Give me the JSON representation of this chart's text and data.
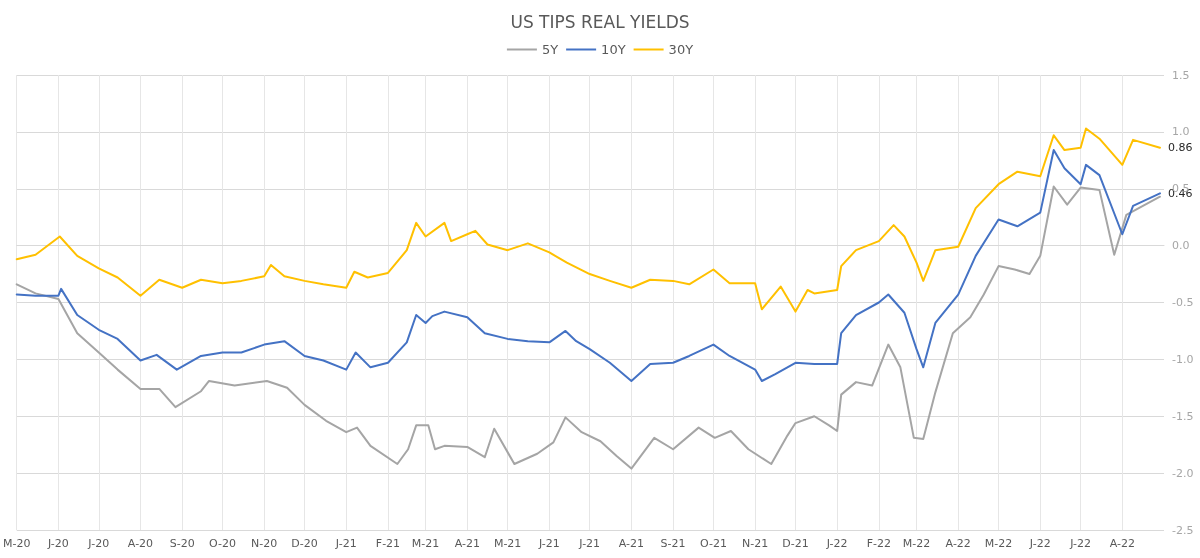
{
  "chart_data": {
    "type": "line",
    "title": "US TIPS REAL YIELDS",
    "legend": "top",
    "grid": true,
    "marker": "none",
    "line_style": "solid",
    "xlim": [
      "2020-05-01",
      "2022-09-01"
    ],
    "xticks": [
      {
        "value": "2020-05-01",
        "label": "M-20"
      },
      {
        "value": "2020-06-01",
        "label": "J-20"
      },
      {
        "value": "2020-07-01",
        "label": "J-20"
      },
      {
        "value": "2020-08-01",
        "label": "A-20"
      },
      {
        "value": "2020-09-01",
        "label": "S-20"
      },
      {
        "value": "2020-10-01",
        "label": "O-20"
      },
      {
        "value": "2020-11-01",
        "label": "N-20"
      },
      {
        "value": "2020-12-01",
        "label": "D-20"
      },
      {
        "value": "2021-01-01",
        "label": "J-21"
      },
      {
        "value": "2021-02-01",
        "label": "F-21"
      },
      {
        "value": "2021-03-01",
        "label": "M-21"
      },
      {
        "value": "2021-04-01",
        "label": "A-21"
      },
      {
        "value": "2021-05-01",
        "label": "M-21"
      },
      {
        "value": "2021-06-01",
        "label": "J-21"
      },
      {
        "value": "2021-07-01",
        "label": "J-21"
      },
      {
        "value": "2021-08-01",
        "label": "A-21"
      },
      {
        "value": "2021-09-01",
        "label": "S-21"
      },
      {
        "value": "2021-10-01",
        "label": "O-21"
      },
      {
        "value": "2021-11-01",
        "label": "N-21"
      },
      {
        "value": "2021-12-01",
        "label": "D-21"
      },
      {
        "value": "2022-01-01",
        "label": "J-22"
      },
      {
        "value": "2022-02-01",
        "label": "F-22"
      },
      {
        "value": "2022-03-01",
        "label": "M-22"
      },
      {
        "value": "2022-04-01",
        "label": "A-22"
      },
      {
        "value": "2022-05-01",
        "label": "M-22"
      },
      {
        "value": "2022-06-01",
        "label": "J-22"
      },
      {
        "value": "2022-07-01",
        "label": "J-22"
      },
      {
        "value": "2022-08-01",
        "label": "A-22"
      }
    ],
    "ylim": [
      -2.5,
      1.5
    ],
    "yticks": [
      -2.5,
      {
        "value": -2,
        "label": "-2.0"
      },
      -1.5,
      {
        "value": -1,
        "label": "-1.0"
      },
      -0.5,
      {
        "value": 0,
        "label": "0.0"
      },
      0.5,
      {
        "value": 1,
        "label": "1.0"
      },
      1.5
    ],
    "annotations": [
      {
        "text": "0.86",
        "x": "2022-08-29",
        "y": 0.86
      },
      {
        "text": "0.46",
        "x": "2022-08-29",
        "y": 0.46
      }
    ],
    "series": [
      {
        "name": "5Y",
        "color": "#a5a5a5",
        "x": [
          "2020-05-01",
          "2020-05-15",
          "2020-06-01",
          "2020-06-15",
          "2020-07-01",
          "2020-07-15",
          "2020-08-01",
          "2020-08-15",
          "2020-08-27",
          "2020-09-15",
          "2020-09-21",
          "2020-10-10",
          "2020-11-03",
          "2020-11-18",
          "2020-12-01",
          "2020-12-17",
          "2021-01-01",
          "2021-01-09",
          "2021-01-19",
          "2021-02-08",
          "2021-02-16",
          "2021-02-22",
          "2021-03-03",
          "2021-03-08",
          "2021-03-15",
          "2021-04-01",
          "2021-04-14",
          "2021-04-21",
          "2021-05-06",
          "2021-05-23",
          "2021-06-04",
          "2021-06-13",
          "2021-06-25",
          "2021-07-09",
          "2021-07-21",
          "2021-08-01",
          "2021-08-18",
          "2021-09-01",
          "2021-09-20",
          "2021-10-02",
          "2021-10-14",
          "2021-10-27",
          "2021-11-13",
          "2021-11-25",
          "2021-12-01",
          "2021-12-15",
          "2021-12-26",
          "2022-01-01",
          "2022-01-04",
          "2022-01-15",
          "2022-01-27",
          "2022-02-08",
          "2022-02-17",
          "2022-02-27",
          "2022-03-06",
          "2022-03-15",
          "2022-03-28",
          "2022-04-10",
          "2022-04-20",
          "2022-05-01",
          "2022-05-13",
          "2022-05-24",
          "2022-06-01",
          "2022-06-11",
          "2022-06-21",
          "2022-07-01",
          "2022-07-15",
          "2022-07-26",
          "2022-08-04",
          "2022-08-29"
        ],
        "values": [
          -0.34,
          -0.42,
          -0.47,
          -0.77,
          -0.94,
          -1.09,
          -1.26,
          -1.26,
          -1.42,
          -1.28,
          -1.19,
          -1.23,
          -1.19,
          -1.25,
          -1.4,
          -1.54,
          -1.64,
          -1.6,
          -1.76,
          -1.92,
          -1.79,
          -1.58,
          -1.58,
          -1.79,
          -1.76,
          -1.77,
          -1.86,
          -1.61,
          -1.92,
          -1.83,
          -1.73,
          -1.51,
          -1.64,
          -1.72,
          -1.85,
          -1.96,
          -1.69,
          -1.79,
          -1.6,
          -1.69,
          -1.63,
          -1.79,
          -1.92,
          -1.67,
          -1.56,
          -1.5,
          -1.58,
          -1.63,
          -1.31,
          -1.2,
          -1.23,
          -0.87,
          -1.07,
          -1.69,
          -1.7,
          -1.29,
          -0.77,
          -0.63,
          -0.43,
          -0.18,
          -0.21,
          -0.25,
          -0.09,
          0.52,
          0.36,
          0.51,
          0.49,
          -0.08,
          0.27,
          0.43
        ]
      },
      {
        "name": "10Y",
        "color": "#4472c4",
        "x": [
          "2020-05-01",
          "2020-05-15",
          "2020-06-01",
          "2020-06-03",
          "2020-06-15",
          "2020-07-01",
          "2020-07-15",
          "2020-08-01",
          "2020-08-13",
          "2020-08-28",
          "2020-09-15",
          "2020-10-01",
          "2020-10-15",
          "2020-11-01",
          "2020-11-16",
          "2020-12-01",
          "2020-12-15",
          "2021-01-01",
          "2021-01-08",
          "2021-01-19",
          "2021-02-01",
          "2021-02-15",
          "2021-02-22",
          "2021-03-01",
          "2021-03-06",
          "2021-03-15",
          "2021-04-01",
          "2021-04-14",
          "2021-05-01",
          "2021-05-16",
          "2021-06-01",
          "2021-06-13",
          "2021-06-21",
          "2021-07-01",
          "2021-07-16",
          "2021-08-01",
          "2021-08-15",
          "2021-09-01",
          "2021-09-13",
          "2021-10-01",
          "2021-10-13",
          "2021-11-01",
          "2021-11-06",
          "2021-11-16",
          "2021-12-01",
          "2021-12-15",
          "2022-01-01",
          "2022-01-04",
          "2022-01-15",
          "2022-02-01",
          "2022-02-08",
          "2022-02-20",
          "2022-03-01",
          "2022-03-06",
          "2022-03-15",
          "2022-04-01",
          "2022-04-14",
          "2022-05-01",
          "2022-05-15",
          "2022-06-01",
          "2022-06-11",
          "2022-06-19",
          "2022-07-01",
          "2022-07-05",
          "2022-07-15",
          "2022-08-01",
          "2022-08-09",
          "2022-08-29"
        ],
        "values": [
          -0.43,
          -0.44,
          -0.44,
          -0.38,
          -0.61,
          -0.74,
          -0.82,
          -1.01,
          -0.96,
          -1.09,
          -0.97,
          -0.94,
          -0.94,
          -0.87,
          -0.84,
          -0.97,
          -1.01,
          -1.09,
          -0.94,
          -1.07,
          -1.03,
          -0.85,
          -0.61,
          -0.68,
          -0.62,
          -0.58,
          -0.63,
          -0.77,
          -0.82,
          -0.84,
          -0.85,
          -0.75,
          -0.84,
          -0.91,
          -1.03,
          -1.19,
          -1.04,
          -1.03,
          -0.97,
          -0.87,
          -0.97,
          -1.09,
          -1.19,
          -1.13,
          -1.03,
          -1.04,
          -1.04,
          -0.77,
          -0.61,
          -0.5,
          -0.43,
          -0.59,
          -0.91,
          -1.07,
          -0.68,
          -0.43,
          -0.09,
          0.23,
          0.17,
          0.29,
          0.84,
          0.68,
          0.54,
          0.71,
          0.62,
          0.1,
          0.35,
          0.46
        ]
      },
      {
        "name": "30Y",
        "color": "#ffc000",
        "x": [
          "2020-05-01",
          "2020-05-15",
          "2020-06-02",
          "2020-06-15",
          "2020-07-01",
          "2020-07-15",
          "2020-08-01",
          "2020-08-15",
          "2020-09-01",
          "2020-09-15",
          "2020-10-01",
          "2020-10-15",
          "2020-11-01",
          "2020-11-06",
          "2020-11-16",
          "2020-12-01",
          "2020-12-15",
          "2021-01-01",
          "2021-01-07",
          "2021-01-17",
          "2021-02-01",
          "2021-02-15",
          "2021-02-22",
          "2021-03-01",
          "2021-03-15",
          "2021-03-20",
          "2021-04-01",
          "2021-04-07",
          "2021-04-16",
          "2021-05-01",
          "2021-05-16",
          "2021-06-01",
          "2021-06-14",
          "2021-07-01",
          "2021-07-16",
          "2021-08-01",
          "2021-08-15",
          "2021-09-01",
          "2021-09-13",
          "2021-10-01",
          "2021-10-13",
          "2021-11-01",
          "2021-11-06",
          "2021-11-20",
          "2021-12-01",
          "2021-12-10",
          "2021-12-15",
          "2022-01-01",
          "2022-01-04",
          "2022-01-15",
          "2022-02-01",
          "2022-02-12",
          "2022-02-20",
          "2022-03-01",
          "2022-03-06",
          "2022-03-15",
          "2022-04-01",
          "2022-04-14",
          "2022-05-01",
          "2022-05-15",
          "2022-06-01",
          "2022-06-11",
          "2022-06-19",
          "2022-07-01",
          "2022-07-05",
          "2022-07-15",
          "2022-08-01",
          "2022-08-09",
          "2022-08-29"
        ],
        "values": [
          -0.12,
          -0.08,
          0.08,
          -0.09,
          -0.2,
          -0.28,
          -0.44,
          -0.3,
          -0.37,
          -0.3,
          -0.33,
          -0.31,
          -0.27,
          -0.17,
          -0.27,
          -0.31,
          -0.34,
          -0.37,
          -0.23,
          -0.28,
          -0.24,
          -0.04,
          0.2,
          0.08,
          0.2,
          0.04,
          0.1,
          0.13,
          0.01,
          -0.04,
          0.02,
          -0.06,
          -0.15,
          -0.25,
          -0.31,
          -0.37,
          -0.3,
          -0.31,
          -0.34,
          -0.21,
          -0.33,
          -0.33,
          -0.56,
          -0.36,
          -0.58,
          -0.39,
          -0.42,
          -0.39,
          -0.18,
          -0.04,
          0.04,
          0.18,
          0.08,
          -0.15,
          -0.31,
          -0.04,
          -0.01,
          0.33,
          0.54,
          0.65,
          0.61,
          0.97,
          0.84,
          0.86,
          1.03,
          0.94,
          0.71,
          0.93,
          0.86
        ]
      }
    ]
  }
}
